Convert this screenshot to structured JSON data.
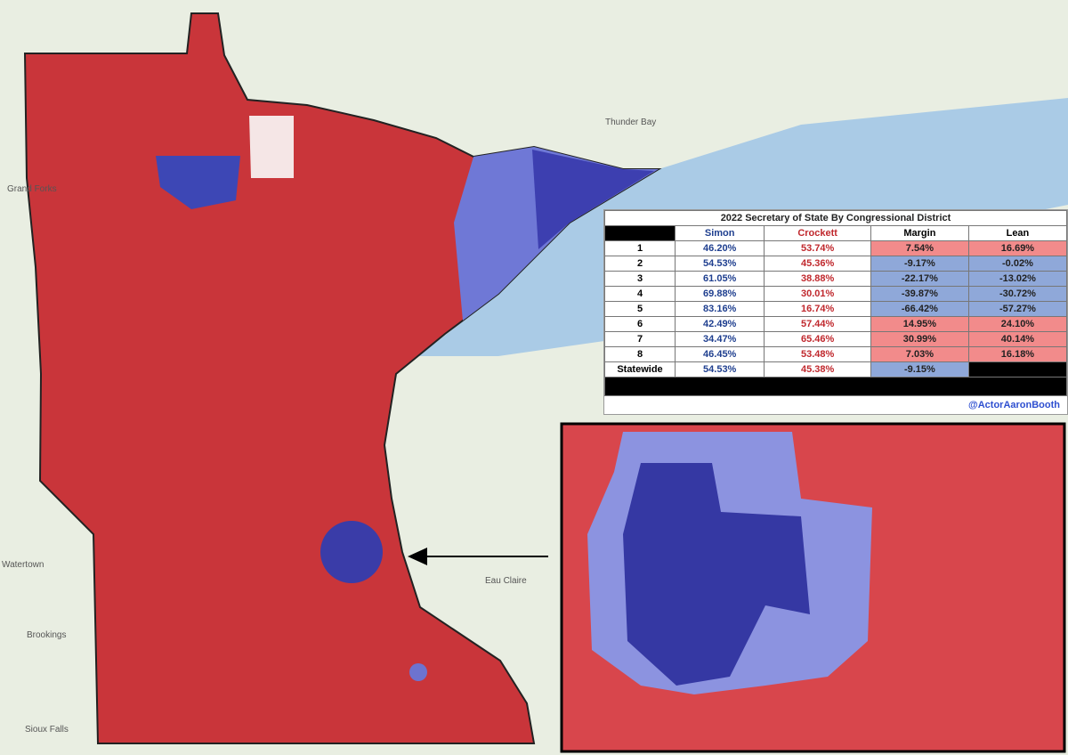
{
  "table": {
    "title": "2022 Secretary of State By Congressional District",
    "headers": [
      "Simon",
      "Crockett",
      "Margin",
      "Lean"
    ],
    "rows": [
      [
        "1",
        "46.20%",
        "53.74%",
        "7.54%",
        "16.69%"
      ],
      [
        "2",
        "54.53%",
        "45.36%",
        "-9.17%",
        "-0.02%"
      ],
      [
        "3",
        "61.05%",
        "38.88%",
        "-22.17%",
        "-13.02%"
      ],
      [
        "4",
        "69.88%",
        "30.01%",
        "-39.87%",
        "-30.72%"
      ],
      [
        "5",
        "83.16%",
        "16.74%",
        "-66.42%",
        "-57.27%"
      ],
      [
        "6",
        "42.49%",
        "57.44%",
        "14.95%",
        "24.10%"
      ],
      [
        "7",
        "34.47%",
        "65.46%",
        "30.99%",
        "40.14%"
      ],
      [
        "8",
        "46.45%",
        "53.48%",
        "7.03%",
        "16.18%"
      ],
      [
        "Statewide",
        "54.53%",
        "45.38%",
        "-9.15%"
      ]
    ],
    "credit": "@ActorAaronBooth"
  },
  "map_labels": [
    "Thunder Bay",
    "Grand Forks",
    "Watertown",
    "Brookings",
    "Sioux Falls",
    "Eau Claire"
  ]
}
